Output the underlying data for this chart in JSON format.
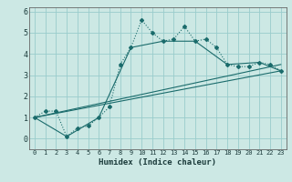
{
  "xlabel": "Humidex (Indice chaleur)",
  "bg_color": "#cce8e4",
  "grid_color": "#99cccc",
  "line_color": "#1a6b6b",
  "xlim": [
    -0.5,
    23.5
  ],
  "ylim": [
    -0.5,
    6.2
  ],
  "xticks": [
    0,
    1,
    2,
    3,
    4,
    5,
    6,
    7,
    8,
    9,
    10,
    11,
    12,
    13,
    14,
    15,
    16,
    17,
    18,
    19,
    20,
    21,
    22,
    23
  ],
  "yticks": [
    0,
    1,
    2,
    3,
    4,
    5,
    6
  ],
  "series": [
    {
      "x": [
        0,
        1,
        2,
        3,
        4,
        5,
        6,
        7,
        8,
        9,
        10,
        11,
        12,
        13,
        14,
        15,
        16,
        17,
        18,
        19,
        20,
        21,
        22,
        23
      ],
      "y": [
        1.0,
        1.3,
        1.3,
        0.1,
        0.5,
        0.6,
        1.0,
        1.5,
        3.5,
        4.3,
        5.6,
        5.0,
        4.6,
        4.7,
        5.3,
        4.6,
        4.7,
        4.3,
        3.5,
        3.4,
        3.4,
        3.6,
        3.5,
        3.2
      ],
      "style": "dotted",
      "marker": true
    },
    {
      "x": [
        0,
        3,
        6,
        9,
        12,
        15,
        18,
        21,
        23
      ],
      "y": [
        1.0,
        0.1,
        1.0,
        4.3,
        4.6,
        4.6,
        3.5,
        3.6,
        3.2
      ],
      "style": "solid",
      "marker": false
    },
    {
      "x": [
        0,
        23
      ],
      "y": [
        1.0,
        3.2
      ],
      "style": "solid",
      "marker": false
    },
    {
      "x": [
        0,
        23
      ],
      "y": [
        1.0,
        3.5
      ],
      "style": "solid",
      "marker": false
    }
  ]
}
